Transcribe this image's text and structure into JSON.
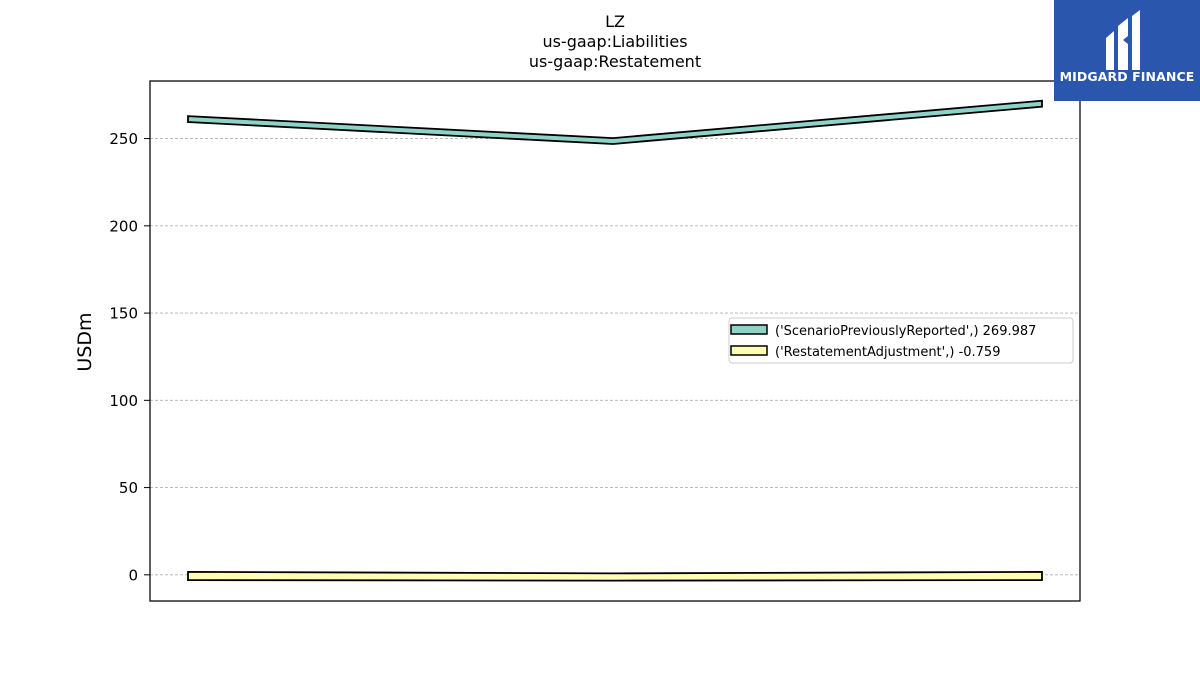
{
  "logo": {
    "text": "MIDGARD FINANCE",
    "background": "#2b56ad"
  },
  "chart_data": {
    "type": "area",
    "title_lines": [
      "LZ",
      "us-gaap:Liabilities",
      "us-gaap:Restatement"
    ],
    "xlabel": "",
    "ylabel": "USDm",
    "ylim": [
      -15,
      283
    ],
    "yticks": [
      0,
      50,
      100,
      150,
      200,
      250
    ],
    "grid": "horizontal dashed",
    "legend_position": "center-right",
    "series": [
      {
        "name": "('ScenarioPreviouslyReported',) 269.987",
        "color": "#8dd3c7",
        "values": [
          {
            "lower": 259.5,
            "upper": 262.9
          },
          {
            "lower": 246.9,
            "upper": 250.3
          },
          {
            "lower": 268.3,
            "upper": 271.7
          }
        ]
      },
      {
        "name": "('RestatementAdjustment',) -0.759",
        "color": "#ffffb3",
        "values": [
          {
            "lower": -3.0,
            "upper": 1.7
          },
          {
            "lower": -3.3,
            "upper": 0.8
          },
          {
            "lower": -3.0,
            "upper": 1.7
          }
        ]
      }
    ]
  }
}
